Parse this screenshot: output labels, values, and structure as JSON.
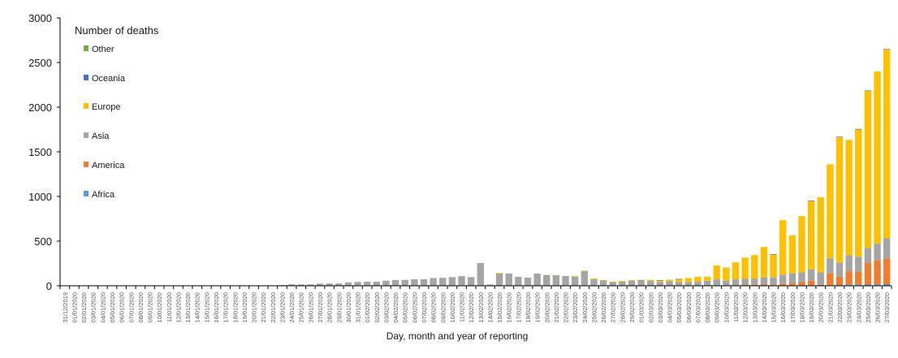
{
  "chart_data": {
    "type": "bar",
    "stacked": true,
    "title": "",
    "legend_title": "Number of deaths",
    "xlabel": "Day, month and year of reporting",
    "ylabel": "",
    "ylim": [
      0,
      3000
    ],
    "yticks": [
      0,
      500,
      1000,
      1500,
      2000,
      2500,
      3000
    ],
    "grid": false,
    "legend_position": "upper-left-inside",
    "legend_order": [
      "Other",
      "Oceania",
      "Europe",
      "Asia",
      "America",
      "Africa"
    ],
    "colors": {
      "Africa": "#5B9BD5",
      "America": "#ED7D31",
      "Asia": "#A5A5A5",
      "Europe": "#FFC000",
      "Oceania": "#4472C4",
      "Other": "#70AD47"
    },
    "categories": [
      "31/12/2019",
      "01/01/2020",
      "02/01/2020",
      "03/01/2020",
      "04/01/2020",
      "05/01/2020",
      "06/01/2020",
      "07/01/2020",
      "08/01/2020",
      "09/01/2020",
      "10/01/2020",
      "11/01/2020",
      "12/01/2020",
      "13/01/2020",
      "14/01/2020",
      "15/01/2020",
      "16/01/2020",
      "17/01/2020",
      "18/01/2020",
      "19/01/2020",
      "20/01/2020",
      "21/01/2020",
      "22/01/2020",
      "23/01/2020",
      "24/01/2020",
      "25/01/2020",
      "26/01/2020",
      "27/01/2020",
      "28/01/2020",
      "29/01/2020",
      "30/01/2020",
      "31/01/2020",
      "01/02/2020",
      "02/02/2020",
      "03/02/2020",
      "04/02/2020",
      "05/02/2020",
      "06/02/2020",
      "07/02/2020",
      "08/02/2020",
      "09/02/2020",
      "10/02/2020",
      "11/02/2020",
      "12/02/2020",
      "13/02/2020",
      "14/02/2020",
      "15/02/2020",
      "16/02/2020",
      "17/02/2020",
      "18/02/2020",
      "19/02/2020",
      "20/02/2020",
      "21/02/2020",
      "22/02/2020",
      "23/02/2020",
      "24/02/2020",
      "25/02/2020",
      "26/02/2020",
      "27/02/2020",
      "28/02/2020",
      "29/02/2020",
      "01/03/2020",
      "02/03/2020",
      "03/03/2020",
      "04/03/2020",
      "05/03/2020",
      "06/03/2020",
      "07/03/2020",
      "08/03/2020",
      "09/03/2020",
      "10/03/2020",
      "11/03/2020",
      "12/03/2020",
      "13/03/2020",
      "14/03/2020",
      "15/03/2020",
      "16/03/2020",
      "17/03/2020",
      "18/03/2020",
      "19/03/2020",
      "20/03/2020",
      "21/03/2020",
      "22/03/2020",
      "23/03/2020",
      "24/03/2020",
      "25/03/2020",
      "26/03/2020",
      "27/03/2020"
    ],
    "series": [
      {
        "name": "Africa",
        "values": [
          0,
          0,
          0,
          0,
          0,
          0,
          0,
          0,
          0,
          0,
          0,
          0,
          0,
          0,
          0,
          0,
          0,
          0,
          0,
          0,
          0,
          0,
          0,
          0,
          0,
          0,
          0,
          0,
          0,
          0,
          0,
          0,
          0,
          0,
          0,
          0,
          0,
          0,
          0,
          0,
          0,
          0,
          0,
          0,
          0,
          0,
          0,
          0,
          0,
          0,
          0,
          0,
          0,
          0,
          0,
          0,
          0,
          0,
          0,
          0,
          0,
          0,
          0,
          0,
          0,
          0,
          0,
          0,
          0,
          1,
          0,
          1,
          1,
          1,
          2,
          1,
          2,
          3,
          4,
          5,
          4,
          6,
          8,
          10,
          12,
          14,
          16,
          18
        ]
      },
      {
        "name": "America",
        "values": [
          0,
          0,
          0,
          0,
          0,
          0,
          0,
          0,
          0,
          0,
          0,
          0,
          0,
          0,
          0,
          0,
          0,
          0,
          0,
          0,
          0,
          0,
          0,
          0,
          0,
          0,
          0,
          0,
          0,
          0,
          0,
          0,
          0,
          0,
          0,
          0,
          0,
          0,
          0,
          0,
          0,
          0,
          0,
          0,
          0,
          0,
          0,
          0,
          0,
          0,
          0,
          0,
          0,
          0,
          0,
          0,
          0,
          0,
          0,
          0,
          1,
          1,
          4,
          1,
          3,
          1,
          3,
          3,
          4,
          4,
          4,
          3,
          8,
          10,
          12,
          11,
          18,
          24,
          37,
          53,
          6,
          133,
          92,
          150,
          146,
          244,
          269,
          285
        ]
      },
      {
        "name": "Asia",
        "values": [
          0,
          0,
          0,
          0,
          0,
          0,
          0,
          0,
          0,
          0,
          0,
          1,
          0,
          0,
          0,
          1,
          0,
          0,
          0,
          1,
          0,
          3,
          0,
          8,
          16,
          15,
          15,
          24,
          26,
          26,
          38,
          43,
          46,
          45,
          57,
          64,
          66,
          73,
          73,
          86,
          89,
          97,
          108,
          97,
          254,
          13,
          138,
          136,
          100,
          91,
          136,
          118,
          118,
          109,
          103,
          160,
          74,
          62,
          42,
          47,
          56,
          54,
          50,
          42,
          47,
          42,
          40,
          42,
          52,
          67,
          54,
          67,
          70,
          70,
          80,
          81,
          103,
          112,
          110,
          124,
          140,
          169,
          160,
          181,
          166,
          164,
          183,
          230
        ]
      },
      {
        "name": "Europe",
        "values": [
          0,
          0,
          0,
          0,
          0,
          0,
          0,
          0,
          0,
          0,
          0,
          0,
          0,
          0,
          0,
          0,
          0,
          0,
          0,
          0,
          0,
          0,
          0,
          0,
          0,
          0,
          0,
          0,
          0,
          0,
          0,
          0,
          0,
          0,
          0,
          0,
          0,
          0,
          0,
          0,
          0,
          0,
          0,
          0,
          0,
          0,
          7,
          0,
          0,
          0,
          0,
          0,
          0,
          0,
          6,
          5,
          8,
          2,
          3,
          7,
          7,
          9,
          12,
          20,
          18,
          32,
          42,
          55,
          45,
          155,
          146,
          191,
          236,
          263,
          340,
          260,
          611,
          426,
          628,
          771,
          842,
          1052,
          1408,
          1292,
          1431,
          1764,
          1933,
          2116
        ]
      },
      {
        "name": "Oceania",
        "values": [
          0,
          0,
          0,
          0,
          0,
          0,
          0,
          0,
          0,
          0,
          0,
          0,
          0,
          0,
          0,
          0,
          0,
          0,
          0,
          0,
          0,
          0,
          0,
          0,
          0,
          0,
          0,
          0,
          0,
          0,
          0,
          0,
          0,
          0,
          0,
          0,
          0,
          0,
          0,
          0,
          0,
          0,
          0,
          0,
          0,
          0,
          0,
          0,
          0,
          0,
          0,
          0,
          0,
          0,
          0,
          0,
          0,
          0,
          0,
          0,
          0,
          1,
          0,
          1,
          0,
          1,
          0,
          0,
          0,
          0,
          0,
          0,
          0,
          0,
          0,
          1,
          0,
          0,
          0,
          1,
          0,
          0,
          1,
          0,
          1,
          1,
          0,
          2
        ]
      },
      {
        "name": "Other",
        "values": [
          0,
          0,
          0,
          0,
          0,
          0,
          0,
          0,
          0,
          0,
          0,
          0,
          0,
          0,
          0,
          0,
          0,
          0,
          0,
          0,
          0,
          0,
          0,
          0,
          0,
          0,
          0,
          0,
          0,
          0,
          0,
          0,
          0,
          0,
          0,
          0,
          0,
          0,
          0,
          0,
          0,
          0,
          0,
          0,
          0,
          0,
          0,
          0,
          0,
          0,
          0,
          1,
          0,
          0,
          0,
          1,
          0,
          0,
          0,
          0,
          0,
          0,
          0,
          0,
          0,
          0,
          0,
          0,
          0,
          0,
          0,
          0,
          0,
          0,
          0,
          0,
          0,
          0,
          0,
          0,
          0,
          0,
          0,
          0,
          0,
          0,
          0,
          0
        ]
      }
    ]
  }
}
